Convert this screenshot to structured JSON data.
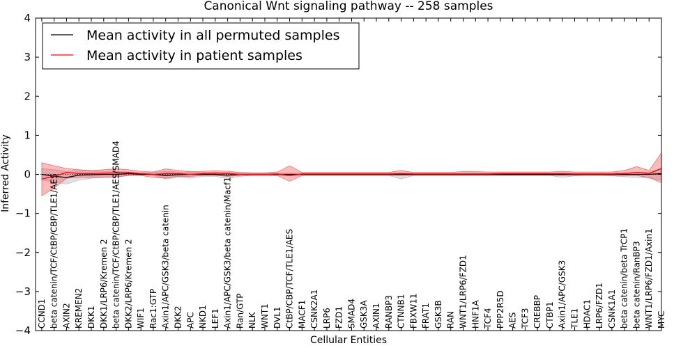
{
  "chart_data": {
    "type": "line",
    "title": "Canonical Wnt signaling pathway -- 258 samples",
    "xlabel": "Cellular Entities",
    "ylabel": "Inferred Activity",
    "ylim": [
      -4,
      4
    ],
    "yticks": [
      "−4",
      "−3",
      "−2",
      "−1",
      "0",
      "1",
      "2",
      "3",
      "4"
    ],
    "ytick_values": [
      -4,
      -3,
      -2,
      -1,
      0,
      1,
      2,
      3,
      4
    ],
    "legend_position": "top-left",
    "categories": [
      "CCND1",
      "beta catenin/TCF/CtBP/CBP/TLE1/AES",
      "AXIN2",
      "KREMEN2",
      "DKK1",
      "DKK1/LRP6/Kremen 2",
      "beta catenin/TCF/CtBP/CBP/TLE1/AES/SMAD4",
      "DKK2/LRP6/Kremen 2",
      "WIF1",
      "Rac1:GTP",
      "Axin1/APC/GSK3/beta catenin",
      "DKK2",
      "APC",
      "NKD1",
      "LEF1",
      "Axin1/APC/GSK3/beta catenin/Macf1",
      "Ran/GTP",
      "NLK",
      "WNT1",
      "DVL1",
      "CtBP/CBP/TCF/TLE1/AES",
      "MACF1",
      "CSNK2A1",
      "LRP6",
      "FZD1",
      "SMAD4",
      "GSK3A",
      "AXIN1",
      "RANBP3",
      "CTNNB1",
      "FBXW11",
      "FRAT1",
      "GSK3B",
      "RAN",
      "WNT1/LRP6/FZD1",
      "HNF1A",
      "TCF4",
      "PPP2R5D",
      "AES",
      "TCF3",
      "CREBBP",
      "CTBP1",
      "Axin1/APC/GSK3",
      "TLE1",
      "HDAC1",
      "LRP6/FZD1",
      "CSNK1A1",
      "beta catenin/beta TrCP1",
      "beta catenin/RanBP3",
      "WNT1/LRP6/FZD1/Axin1",
      "MYC"
    ],
    "series": [
      {
        "name": "Mean activity in all permuted samples",
        "color": "#000000",
        "values": [
          0.0,
          -0.05,
          -0.08,
          -0.02,
          -0.01,
          0.0,
          0.0,
          0.02,
          0.0,
          0.0,
          -0.03,
          -0.01,
          0.0,
          0.0,
          0.0,
          -0.02,
          0.0,
          0.0,
          0.0,
          0.0,
          0.0,
          0.0,
          0.0,
          0.0,
          0.0,
          0.0,
          0.0,
          0.0,
          0.0,
          0.0,
          0.0,
          0.0,
          0.0,
          0.0,
          0.0,
          0.0,
          0.0,
          0.0,
          0.0,
          0.0,
          0.0,
          0.0,
          0.0,
          0.0,
          0.0,
          0.0,
          0.0,
          0.0,
          0.0,
          0.0,
          0.02
        ],
        "band_lower": [
          -0.15,
          -0.2,
          -0.25,
          -0.15,
          -0.1,
          -0.08,
          -0.08,
          -0.03,
          -0.02,
          -0.03,
          -0.12,
          -0.08,
          -0.1,
          -0.05,
          -0.05,
          -0.12,
          -0.05,
          -0.03,
          -0.03,
          -0.04,
          -0.04,
          -0.03,
          -0.03,
          -0.03,
          -0.03,
          -0.03,
          -0.03,
          -0.03,
          -0.03,
          -0.12,
          -0.03,
          -0.03,
          -0.03,
          -0.03,
          -0.03,
          -0.03,
          -0.03,
          -0.03,
          -0.03,
          -0.03,
          -0.03,
          -0.03,
          -0.08,
          -0.04,
          -0.03,
          -0.03,
          -0.04,
          -0.06,
          -0.08,
          -0.1,
          -0.15
        ],
        "band_upper": [
          0.15,
          0.12,
          0.08,
          0.1,
          0.1,
          0.08,
          0.08,
          0.06,
          0.03,
          0.05,
          0.08,
          0.06,
          0.06,
          0.05,
          0.05,
          0.05,
          0.04,
          0.03,
          0.03,
          0.03,
          0.04,
          0.03,
          0.03,
          0.03,
          0.03,
          0.03,
          0.03,
          0.03,
          0.03,
          0.03,
          0.03,
          0.03,
          0.03,
          0.03,
          0.03,
          0.03,
          0.03,
          0.03,
          0.03,
          0.03,
          0.03,
          0.03,
          0.03,
          0.03,
          0.03,
          0.03,
          0.03,
          0.04,
          0.05,
          0.06,
          0.15
        ]
      },
      {
        "name": "Mean activity in patient samples",
        "color": "#ff0000",
        "values": [
          -0.12,
          -0.05,
          0.05,
          0.02,
          0.02,
          0.03,
          0.04,
          0.05,
          0.02,
          0.0,
          0.02,
          0.02,
          0.0,
          0.02,
          0.03,
          0.02,
          0.0,
          0.0,
          0.0,
          0.01,
          -0.03,
          0.01,
          0.01,
          0.01,
          0.01,
          0.01,
          0.01,
          0.01,
          0.01,
          0.02,
          0.01,
          0.01,
          0.01,
          0.01,
          0.01,
          0.01,
          0.01,
          0.02,
          0.02,
          0.02,
          0.02,
          0.02,
          0.02,
          0.01,
          0.01,
          0.01,
          0.01,
          0.02,
          0.05,
          0.02,
          0.15
        ],
        "band_lower": [
          -0.55,
          -0.35,
          -0.1,
          -0.08,
          -0.08,
          -0.08,
          -0.06,
          -0.03,
          -0.03,
          -0.08,
          -0.1,
          -0.05,
          -0.05,
          -0.03,
          -0.03,
          -0.05,
          -0.03,
          -0.03,
          -0.03,
          -0.03,
          -0.18,
          -0.03,
          -0.03,
          -0.03,
          -0.03,
          -0.03,
          -0.03,
          -0.03,
          -0.03,
          -0.03,
          -0.03,
          -0.03,
          -0.03,
          -0.03,
          -0.03,
          -0.03,
          -0.03,
          -0.03,
          -0.03,
          -0.03,
          -0.03,
          -0.03,
          -0.03,
          -0.03,
          -0.03,
          -0.03,
          -0.03,
          -0.03,
          -0.03,
          -0.08,
          -0.22
        ],
        "band_upper": [
          0.3,
          0.22,
          0.15,
          0.12,
          0.1,
          0.12,
          0.14,
          0.12,
          0.08,
          0.06,
          0.14,
          0.1,
          0.07,
          0.08,
          0.09,
          0.08,
          0.05,
          0.04,
          0.04,
          0.06,
          0.22,
          0.05,
          0.05,
          0.05,
          0.05,
          0.05,
          0.05,
          0.05,
          0.05,
          0.1,
          0.05,
          0.05,
          0.05,
          0.05,
          0.08,
          0.07,
          0.06,
          0.06,
          0.06,
          0.06,
          0.06,
          0.06,
          0.08,
          0.06,
          0.06,
          0.06,
          0.06,
          0.1,
          0.2,
          0.1,
          0.55
        ]
      }
    ]
  }
}
